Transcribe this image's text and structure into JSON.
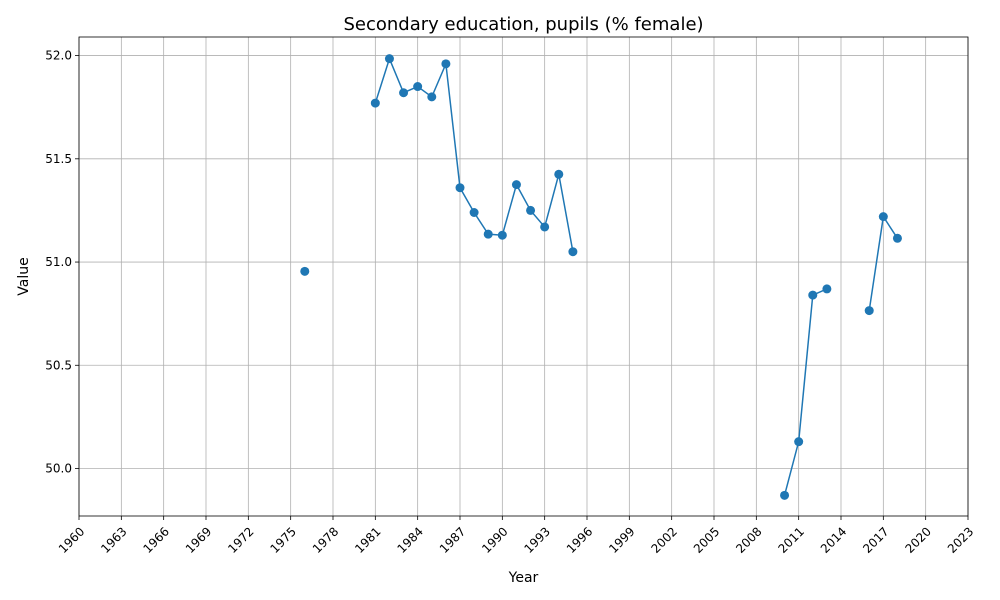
{
  "chart_data": {
    "type": "line",
    "title": "Secondary education, pupils (% female)",
    "xlabel": "Year",
    "ylabel": "Value",
    "xlim": [
      1960,
      2023
    ],
    "ylim": [
      49.77,
      52.09
    ],
    "grid": true,
    "color": "#1f77b4",
    "x_ticks": [
      "1960",
      "1963",
      "1966",
      "1969",
      "1972",
      "1975",
      "1978",
      "1981",
      "1984",
      "1987",
      "1990",
      "1993",
      "1996",
      "1999",
      "2002",
      "2005",
      "2008",
      "2011",
      "2014",
      "2017",
      "2020",
      "2023"
    ],
    "y_ticks": [
      "50.0",
      "50.5",
      "51.0",
      "51.5",
      "52.0"
    ],
    "series": [
      {
        "x": [
          1976,
          1981,
          1982,
          1983,
          1984,
          1985,
          1986,
          1987,
          1988,
          1989,
          1990,
          1991,
          1992,
          1993,
          1994,
          1995,
          2010,
          2011,
          2012,
          2013,
          2016,
          2017,
          2018
        ],
        "values": [
          50.955,
          51.77,
          51.985,
          51.82,
          51.85,
          51.8,
          51.96,
          51.36,
          51.24,
          51.135,
          51.13,
          51.375,
          51.25,
          51.17,
          51.425,
          51.05,
          49.87,
          50.13,
          50.84,
          50.87,
          50.765,
          51.22,
          51.115
        ]
      }
    ]
  }
}
